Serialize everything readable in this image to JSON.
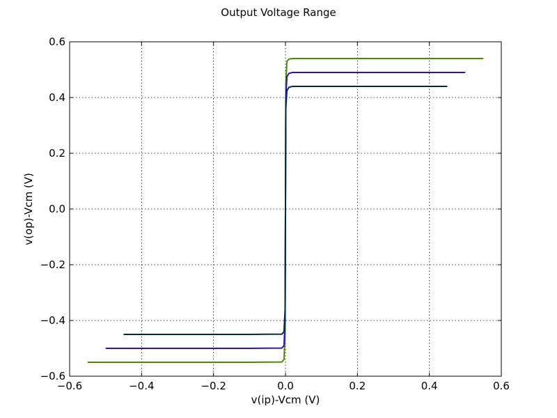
{
  "chart_data": {
    "type": "line",
    "title": "Output Voltage Range",
    "xlabel": "v(ip)-Vcm (V)",
    "ylabel": "v(op)-Vcm (V)",
    "xlim": [
      -0.6,
      0.6
    ],
    "ylim": [
      -0.6,
      0.6
    ],
    "xticks": [
      -0.6,
      -0.4,
      -0.2,
      0.0,
      0.2,
      0.4,
      0.6
    ],
    "yticks": [
      -0.6,
      -0.4,
      -0.2,
      0.0,
      0.2,
      0.4,
      0.6
    ],
    "xtick_labels": [
      "−0.6",
      "−0.4",
      "−0.2",
      "0.0",
      "0.2",
      "0.4",
      "0.6"
    ],
    "ytick_labels": [
      "−0.6",
      "−0.4",
      "−0.2",
      "0.0",
      "0.2",
      "0.4",
      "0.6"
    ],
    "grid": true,
    "series": [
      {
        "color": "#4a8a00",
        "x": [
          -0.55,
          -0.3,
          -0.1,
          -0.01,
          -0.004,
          -0.001,
          0.0,
          0.001,
          0.004,
          0.01,
          0.02,
          0.05,
          0.55
        ],
        "y": [
          -0.55,
          -0.55,
          -0.55,
          -0.549,
          -0.54,
          -0.45,
          0.0,
          0.45,
          0.53,
          0.538,
          0.54,
          0.54,
          0.54
        ]
      },
      {
        "color": "#2a0fd0",
        "x": [
          -0.5,
          -0.3,
          -0.1,
          -0.01,
          -0.004,
          -0.001,
          0.0,
          0.001,
          0.004,
          0.01,
          0.02,
          0.05,
          0.5
        ],
        "y": [
          -0.5,
          -0.5,
          -0.5,
          -0.499,
          -0.49,
          -0.4,
          0.0,
          0.4,
          0.475,
          0.487,
          0.49,
          0.49,
          0.49
        ]
      },
      {
        "color": "#002a3a",
        "x": [
          -0.45,
          -0.3,
          -0.1,
          -0.01,
          -0.004,
          -0.001,
          0.0,
          0.001,
          0.004,
          0.01,
          0.02,
          0.05,
          0.45
        ],
        "y": [
          -0.45,
          -0.45,
          -0.45,
          -0.449,
          -0.44,
          -0.36,
          0.0,
          0.36,
          0.425,
          0.437,
          0.44,
          0.44,
          0.44
        ]
      }
    ]
  }
}
